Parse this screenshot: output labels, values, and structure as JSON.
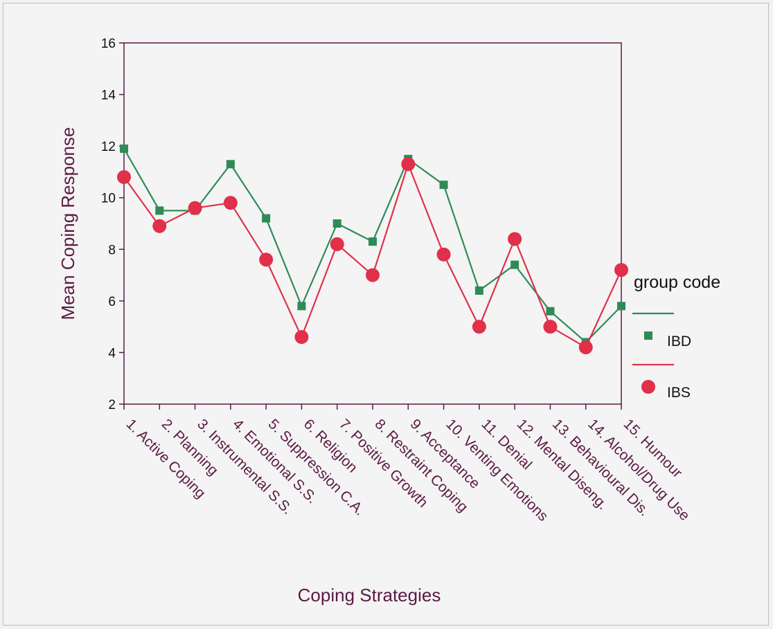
{
  "chart_data": {
    "type": "line",
    "title": "",
    "xlabel": "Coping Strategies",
    "ylabel": "Mean Coping Response",
    "ylim": [
      2,
      16
    ],
    "yticks": [
      2,
      4,
      6,
      8,
      10,
      12,
      14,
      16
    ],
    "categories": [
      "1. Active Coping",
      "2. Planning",
      "3. Instrumental S.S.",
      "4. Emotional S.S.",
      "5. Suppression C.A.",
      "6. Religion",
      "7. Positive Growth",
      "8. Restraint Coping",
      "9. Acceptance",
      "10. Venting Emotions",
      "11. Denial",
      "12. Mental Diseng.",
      "13. Behavioural Dis.",
      "14. Alcohol/Drug Use",
      "15. Humour"
    ],
    "legend": {
      "title": "group code",
      "position": "right"
    },
    "series": [
      {
        "name": "IBD",
        "color": "#2e8b57",
        "marker": "square",
        "values": [
          11.9,
          9.5,
          9.5,
          11.3,
          9.2,
          5.8,
          9.0,
          8.3,
          11.5,
          10.5,
          6.4,
          7.4,
          5.6,
          4.4,
          5.8
        ]
      },
      {
        "name": "IBS",
        "color": "#e0304a",
        "marker": "circle",
        "values": [
          10.8,
          8.9,
          9.6,
          9.8,
          7.6,
          4.6,
          8.2,
          7.0,
          11.3,
          7.8,
          5.0,
          8.4,
          5.0,
          4.2,
          7.2
        ]
      }
    ]
  }
}
